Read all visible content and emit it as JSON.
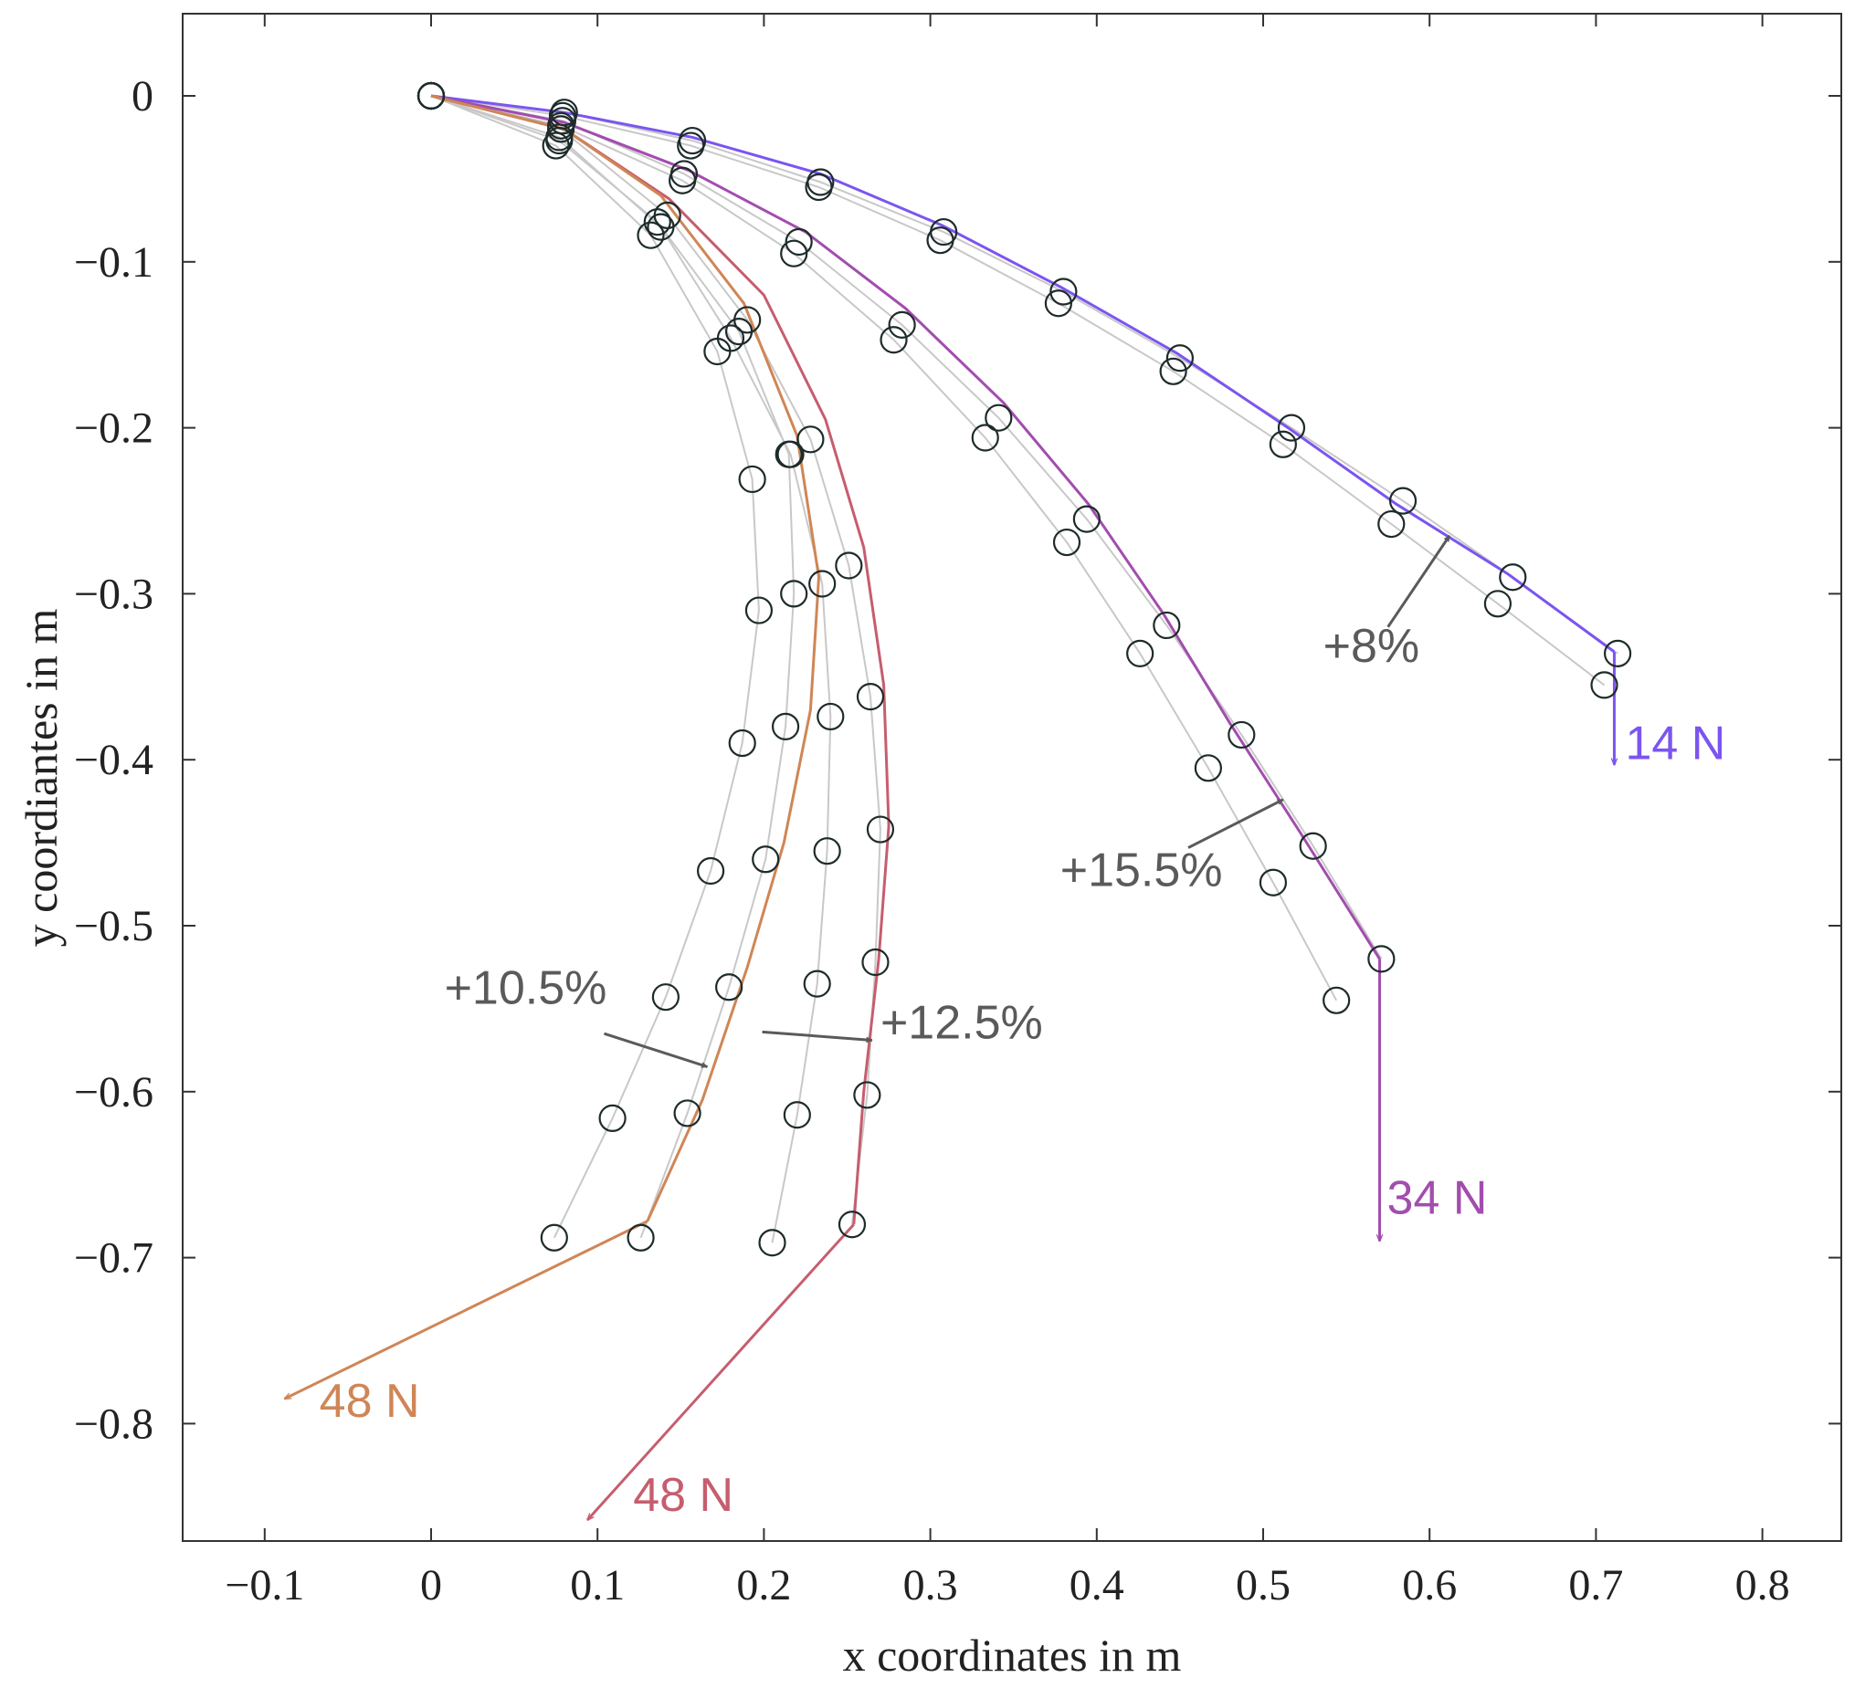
{
  "chart_data": {
    "type": "line",
    "title": "",
    "xlabel": "x coordinates in m",
    "ylabel": "y coordiantes in m",
    "xlim": [
      -0.15,
      0.85
    ],
    "ylim": [
      -0.875,
      0.05
    ],
    "xticks": [
      -0.1,
      0,
      0.1,
      0.2,
      0.3,
      0.4,
      0.5,
      0.6,
      0.7,
      0.8
    ],
    "xtick_labels": [
      "−0.1",
      "0",
      "0.1",
      "0.2",
      "0.3",
      "0.4",
      "0.5",
      "0.6",
      "0.7",
      "0.8"
    ],
    "yticks": [
      0,
      -0.1,
      -0.2,
      -0.3,
      -0.4,
      -0.5,
      -0.6,
      -0.7,
      -0.8
    ],
    "ytick_labels": [
      "0",
      "−0.1",
      "−0.2",
      "−0.3",
      "−0.4",
      "−0.5",
      "−0.6",
      "−0.7",
      "−0.8"
    ],
    "grid": false,
    "series": [
      {
        "color": "#7b55f0",
        "load_label": "14 N",
        "model": [
          [
            0,
            0
          ],
          [
            0.08,
            -0.01
          ],
          [
            0.157,
            -0.025
          ],
          [
            0.234,
            -0.047
          ],
          [
            0.307,
            -0.078
          ],
          [
            0.378,
            -0.115
          ],
          [
            0.448,
            -0.155
          ],
          [
            0.515,
            -0.2
          ],
          [
            0.58,
            -0.246
          ],
          [
            0.647,
            -0.288
          ],
          [
            0.711,
            -0.335
          ]
        ],
        "arrow": [
          [
            0.711,
            -0.335
          ],
          [
            0.711,
            -0.403
          ]
        ],
        "measured_a": [
          [
            0,
            0
          ],
          [
            0.08,
            -0.01
          ],
          [
            0.157,
            -0.027
          ],
          [
            0.234,
            -0.052
          ],
          [
            0.308,
            -0.082
          ],
          [
            0.38,
            -0.118
          ],
          [
            0.45,
            -0.158
          ],
          [
            0.517,
            -0.2
          ],
          [
            0.584,
            -0.244
          ],
          [
            0.65,
            -0.29
          ],
          [
            0.713,
            -0.336
          ]
        ],
        "measured_b": [
          [
            0,
            0
          ],
          [
            0.079,
            -0.012
          ],
          [
            0.156,
            -0.03
          ],
          [
            0.233,
            -0.055
          ],
          [
            0.306,
            -0.087
          ],
          [
            0.377,
            -0.125
          ],
          [
            0.446,
            -0.166
          ],
          [
            0.512,
            -0.21
          ],
          [
            0.577,
            -0.258
          ],
          [
            0.641,
            -0.306
          ],
          [
            0.705,
            -0.355
          ]
        ]
      },
      {
        "color": "#a24dae",
        "load_label": "34 N",
        "model": [
          [
            0,
            0
          ],
          [
            0.08,
            -0.016
          ],
          [
            0.155,
            -0.045
          ],
          [
            0.225,
            -0.082
          ],
          [
            0.285,
            -0.128
          ],
          [
            0.344,
            -0.185
          ],
          [
            0.395,
            -0.246
          ],
          [
            0.44,
            -0.312
          ],
          [
            0.48,
            -0.378
          ],
          [
            0.523,
            -0.445
          ],
          [
            0.57,
            -0.52
          ]
        ],
        "arrow": [
          [
            0.57,
            -0.52
          ],
          [
            0.57,
            -0.69
          ]
        ],
        "measured_a": [
          [
            0,
            0
          ],
          [
            0.079,
            -0.015
          ],
          [
            0.152,
            -0.047
          ],
          [
            0.221,
            -0.088
          ],
          [
            0.283,
            -0.138
          ],
          [
            0.341,
            -0.194
          ],
          [
            0.394,
            -0.255
          ],
          [
            0.442,
            -0.319
          ],
          [
            0.487,
            -0.385
          ],
          [
            0.53,
            -0.452
          ],
          [
            0.571,
            -0.52
          ]
        ],
        "measured_b": [
          [
            0,
            0
          ],
          [
            0.078,
            -0.018
          ],
          [
            0.151,
            -0.051
          ],
          [
            0.218,
            -0.095
          ],
          [
            0.278,
            -0.147
          ],
          [
            0.333,
            -0.206
          ],
          [
            0.382,
            -0.269
          ],
          [
            0.426,
            -0.336
          ],
          [
            0.467,
            -0.405
          ],
          [
            0.506,
            -0.474
          ],
          [
            0.544,
            -0.545
          ]
        ]
      },
      {
        "color": "#c65d6e",
        "load_label": "48 N",
        "model": [
          [
            0,
            0
          ],
          [
            0.08,
            -0.02
          ],
          [
            0.143,
            -0.062
          ],
          [
            0.2,
            -0.12
          ],
          [
            0.237,
            -0.195
          ],
          [
            0.26,
            -0.272
          ],
          [
            0.272,
            -0.355
          ],
          [
            0.275,
            -0.44
          ],
          [
            0.269,
            -0.52
          ],
          [
            0.26,
            -0.6
          ],
          [
            0.254,
            -0.68
          ]
        ],
        "arrow": [
          [
            0.254,
            -0.68
          ],
          [
            0.094,
            -0.858
          ]
        ],
        "measured_a": [
          [
            0,
            0
          ],
          [
            0.078,
            -0.02
          ],
          [
            0.142,
            -0.072
          ],
          [
            0.19,
            -0.135
          ],
          [
            0.228,
            -0.207
          ],
          [
            0.251,
            -0.283
          ],
          [
            0.264,
            -0.362
          ],
          [
            0.27,
            -0.442
          ],
          [
            0.267,
            -0.522
          ],
          [
            0.262,
            -0.602
          ],
          [
            0.253,
            -0.68
          ]
        ],
        "measured_b": [
          [
            0,
            0
          ],
          [
            0.077,
            -0.025
          ],
          [
            0.138,
            -0.079
          ],
          [
            0.18,
            -0.146
          ],
          [
            0.216,
            -0.216
          ],
          [
            0.235,
            -0.294
          ],
          [
            0.24,
            -0.374
          ],
          [
            0.238,
            -0.455
          ],
          [
            0.232,
            -0.535
          ],
          [
            0.22,
            -0.614
          ],
          [
            0.205,
            -0.691
          ]
        ]
      },
      {
        "color": "#cf8656",
        "load_label": "48 N",
        "model": [
          [
            0,
            0
          ],
          [
            0.08,
            -0.02
          ],
          [
            0.138,
            -0.06
          ],
          [
            0.188,
            -0.125
          ],
          [
            0.22,
            -0.205
          ],
          [
            0.233,
            -0.29
          ],
          [
            0.228,
            -0.37
          ],
          [
            0.212,
            -0.45
          ],
          [
            0.19,
            -0.525
          ],
          [
            0.163,
            -0.605
          ],
          [
            0.13,
            -0.678
          ]
        ],
        "arrow": [
          [
            0.13,
            -0.678
          ],
          [
            -0.088,
            -0.785
          ]
        ],
        "measured_a": [
          [
            0,
            0
          ],
          [
            0.077,
            -0.027
          ],
          [
            0.136,
            -0.076
          ],
          [
            0.185,
            -0.142
          ],
          [
            0.215,
            -0.216
          ],
          [
            0.218,
            -0.3
          ],
          [
            0.213,
            -0.38
          ],
          [
            0.201,
            -0.46
          ],
          [
            0.179,
            -0.537
          ],
          [
            0.154,
            -0.613
          ],
          [
            0.126,
            -0.688
          ]
        ],
        "measured_b": [
          [
            0,
            0
          ],
          [
            0.075,
            -0.03
          ],
          [
            0.132,
            -0.084
          ],
          [
            0.172,
            -0.154
          ],
          [
            0.193,
            -0.231
          ],
          [
            0.197,
            -0.31
          ],
          [
            0.187,
            -0.39
          ],
          [
            0.168,
            -0.467
          ],
          [
            0.141,
            -0.543
          ],
          [
            0.109,
            -0.616
          ],
          [
            0.074,
            -0.688
          ]
        ]
      }
    ],
    "annotations": [
      {
        "text": "+8%",
        "text_pos": [
          0.536,
          -0.341
        ],
        "from": [
          0.575,
          -0.32
        ],
        "to": [
          0.612,
          -0.265
        ]
      },
      {
        "text": "+15.5%",
        "text_pos": [
          0.378,
          -0.476
        ],
        "from": [
          0.455,
          -0.453
        ],
        "to": [
          0.512,
          -0.424
        ]
      },
      {
        "text": "+10.5%",
        "text_pos": [
          0.008,
          -0.547
        ],
        "from": [
          0.104,
          -0.565
        ],
        "to": [
          0.166,
          -0.585
        ]
      },
      {
        "text": "+12.5%",
        "text_pos": [
          0.27,
          -0.568
        ],
        "from": [
          0.199,
          -0.564
        ],
        "to": [
          0.265,
          -0.569
        ]
      }
    ]
  }
}
